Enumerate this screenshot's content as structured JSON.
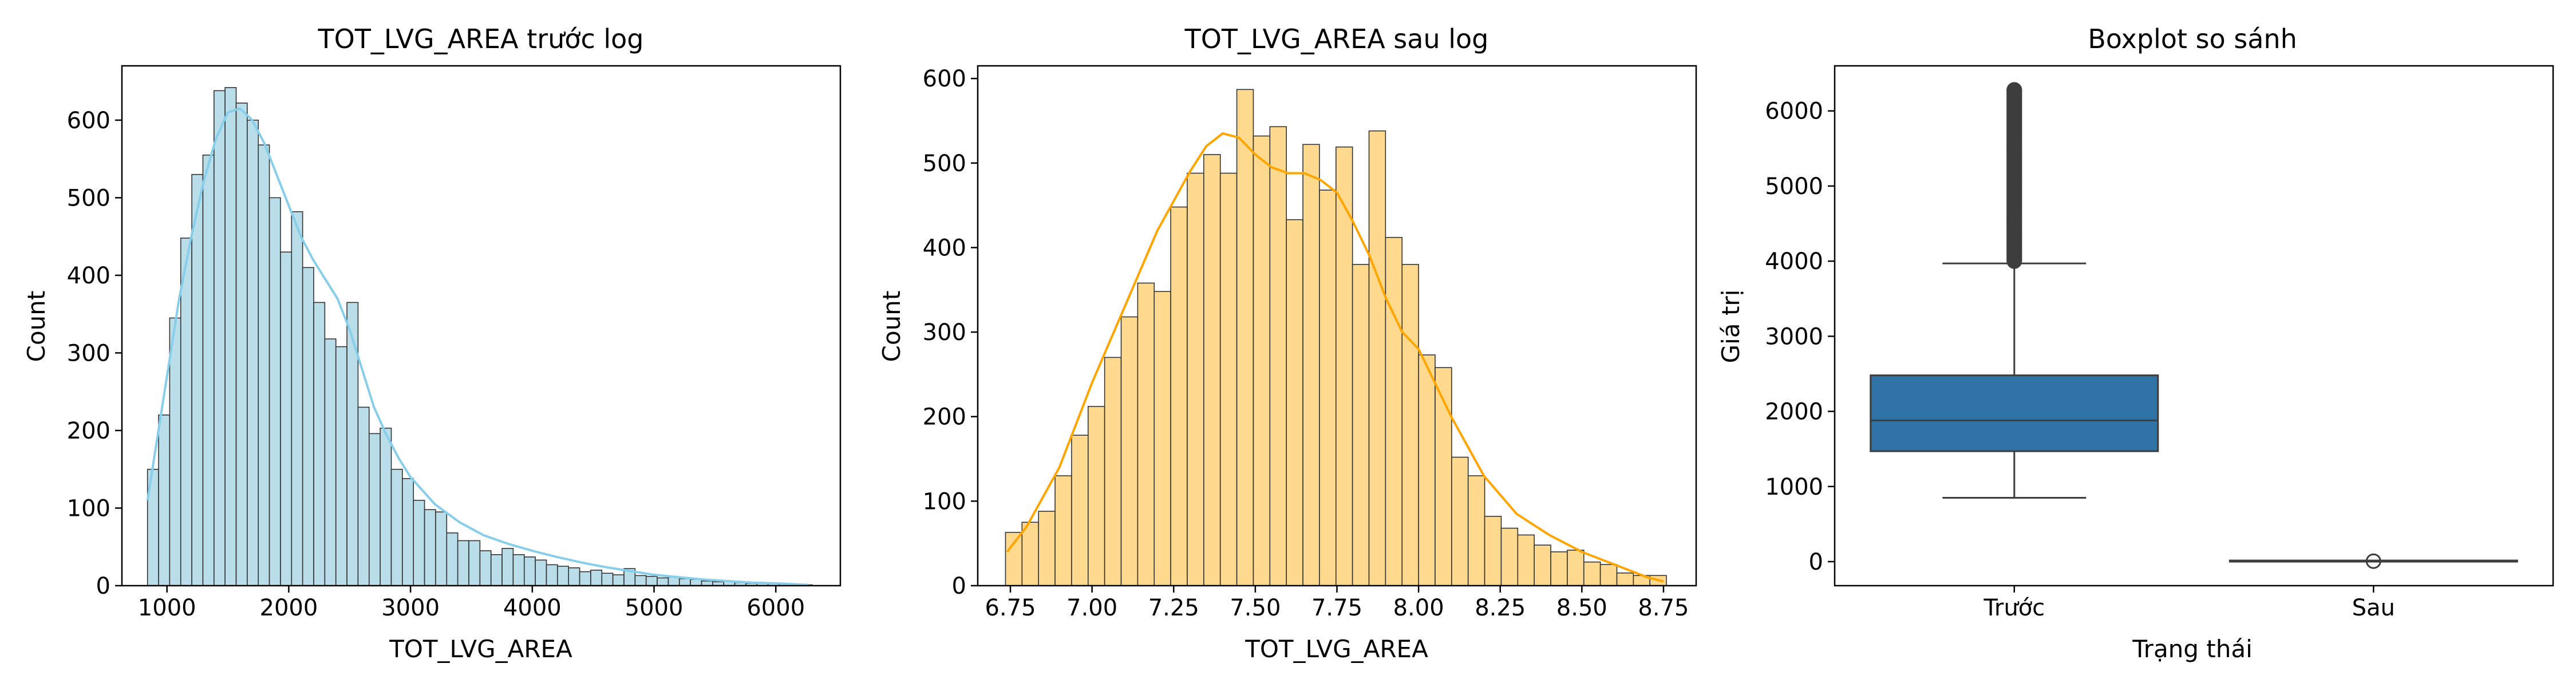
{
  "chart_data": [
    {
      "type": "bar",
      "subtype": "histogram",
      "title": "TOT_LVG_AREA trước log",
      "xlabel": "TOT_LVG_AREA",
      "ylabel": "Count",
      "xlim": [
        630,
        6530
      ],
      "ylim": [
        0,
        670
      ],
      "xticks": [
        1000,
        2000,
        3000,
        4000,
        5000,
        6000
      ],
      "xtick_labels": [
        "1000",
        "2000",
        "3000",
        "4000",
        "5000",
        "6000"
      ],
      "yticks": [
        0,
        100,
        200,
        300,
        400,
        500,
        600
      ],
      "ytick_labels": [
        "0",
        "100",
        "200",
        "300",
        "400",
        "500",
        "600"
      ],
      "bin_start": 840,
      "bin_width": 91,
      "values": [
        150,
        220,
        345,
        448,
        530,
        555,
        638,
        642,
        622,
        600,
        568,
        500,
        430,
        482,
        410,
        365,
        318,
        308,
        365,
        230,
        196,
        203,
        150,
        138,
        110,
        98,
        95,
        68,
        58,
        58,
        45,
        40,
        48,
        40,
        37,
        33,
        27,
        25,
        23,
        18,
        20,
        16,
        14,
        22,
        13,
        12,
        10,
        11,
        9,
        8,
        6,
        5,
        6,
        4,
        3,
        4,
        3,
        2,
        2,
        1
      ],
      "kde": {
        "x": [
          840,
          900,
          1000,
          1100,
          1200,
          1300,
          1400,
          1500,
          1600,
          1700,
          1800,
          1900,
          2000,
          2100,
          2200,
          2300,
          2400,
          2500,
          2600,
          2700,
          2800,
          2900,
          3000,
          3200,
          3400,
          3600,
          3800,
          4000,
          4200,
          4400,
          4600,
          4800,
          5000,
          5200,
          5400,
          5600,
          5800,
          6000,
          6270
        ],
        "y": [
          110,
          170,
          270,
          370,
          450,
          520,
          575,
          610,
          615,
          600,
          570,
          530,
          490,
          450,
          420,
          395,
          370,
          330,
          280,
          230,
          195,
          165,
          140,
          105,
          82,
          65,
          54,
          45,
          37,
          30,
          24,
          19,
          14,
          11,
          8,
          6,
          4,
          3,
          1
        ]
      },
      "series": [
        {
          "name": "",
          "fill": "#add8e6",
          "edge": "#333333",
          "kde_color": "#87ceeb"
        }
      ],
      "grid": false
    },
    {
      "type": "bar",
      "subtype": "histogram",
      "title": "TOT_LVG_AREA sau log",
      "xlabel": "TOT_LVG_AREA",
      "ylabel": "Count",
      "xlim": [
        6.65,
        8.85
      ],
      "ylim": [
        0,
        615
      ],
      "xticks": [
        6.75,
        7.0,
        7.25,
        7.5,
        7.75,
        8.0,
        8.25,
        8.5,
        8.75
      ],
      "xtick_labels": [
        "6.75",
        "7.00",
        "7.25",
        "7.50",
        "7.75",
        "8.00",
        "8.25",
        "8.50",
        "8.75"
      ],
      "yticks": [
        0,
        100,
        200,
        300,
        400,
        500,
        600
      ],
      "ytick_labels": [
        "0",
        "100",
        "200",
        "300",
        "400",
        "500",
        "600"
      ],
      "bin_start": 6.735,
      "bin_width": 0.0506,
      "values": [
        63,
        75,
        88,
        130,
        178,
        212,
        270,
        318,
        358,
        348,
        448,
        488,
        510,
        488,
        587,
        532,
        543,
        433,
        522,
        468,
        519,
        380,
        538,
        412,
        380,
        273,
        258,
        152,
        130,
        82,
        68,
        60,
        48,
        40,
        42,
        28,
        25,
        15,
        12,
        12
      ],
      "kde": {
        "x": [
          6.74,
          6.8,
          6.9,
          7.0,
          7.1,
          7.2,
          7.3,
          7.35,
          7.4,
          7.45,
          7.5,
          7.55,
          7.6,
          7.65,
          7.7,
          7.75,
          7.8,
          7.85,
          7.9,
          7.95,
          8.0,
          8.1,
          8.2,
          8.3,
          8.4,
          8.5,
          8.6,
          8.7,
          8.75
        ],
        "y": [
          40,
          70,
          140,
          240,
          330,
          420,
          490,
          520,
          535,
          530,
          510,
          495,
          488,
          488,
          480,
          465,
          430,
          390,
          340,
          300,
          280,
          200,
          130,
          85,
          60,
          40,
          25,
          10,
          5
        ]
      },
      "series": [
        {
          "name": "",
          "fill": "#ffd27a",
          "edge": "#333333",
          "kde_color": "#ffa500"
        }
      ],
      "grid": false
    },
    {
      "type": "box",
      "title": "Boxplot so sánh",
      "xlabel": "Trạng thái",
      "ylabel": "Giá trị",
      "categories": [
        "Trước",
        "Sau"
      ],
      "ylim": [
        -320,
        6600
      ],
      "yticks": [
        0,
        1000,
        2000,
        3000,
        4000,
        5000,
        6000
      ],
      "ytick_labels": [
        "0",
        "1000",
        "2000",
        "3000",
        "4000",
        "5000",
        "6000"
      ],
      "boxes": [
        {
          "category": "Trước",
          "whisker_low": 850,
          "q1": 1470,
          "median": 1880,
          "q3": 2480,
          "whisker_high": 3970,
          "outliers_min": 4000,
          "outliers_max": 6280,
          "fill": "#2f73a6"
        },
        {
          "category": "Sau",
          "whisker_low": 6.75,
          "q1": 7.3,
          "median": 7.54,
          "q3": 7.82,
          "whisker_high": 8.75,
          "outliers": [
            6.0
          ],
          "fill": "#dd8452"
        }
      ],
      "grid": false
    }
  ]
}
